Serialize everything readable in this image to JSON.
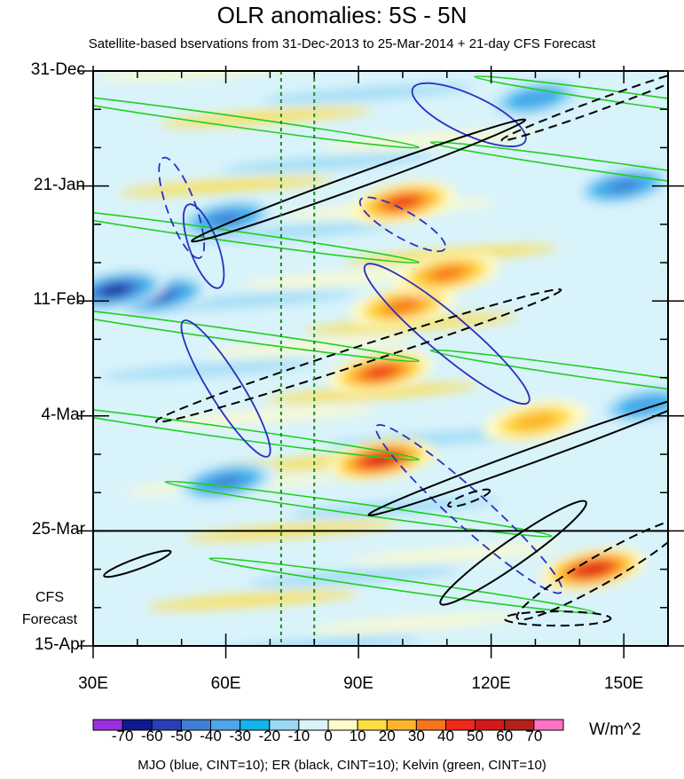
{
  "title": "OLR anomalies: 5S - 5N",
  "subtitle": "Satellite-based bservations from 31-Dec-2013 to 25-Mar-2014 + 21-day CFS Forecast",
  "cfs_label_line1": "CFS",
  "cfs_label_line2": "Forecast",
  "units": "W/m^2",
  "footer": "MJO (blue, CINT=10); ER (black, CINT=10); Kelvin (green, CINT=10)",
  "chart_data": {
    "type": "heatmap",
    "title": "OLR anomalies: 5S - 5N",
    "subtitle": "Satellite-based bservations from 31-Dec-2013 to 25-Mar-2014 + 21-day CFS Forecast",
    "x_axis": {
      "label": "",
      "unit": "longitude (degrees E)",
      "range": [
        30,
        160
      ],
      "ticks": [
        30,
        60,
        90,
        120,
        150
      ],
      "tick_labels": [
        "30E",
        "60E",
        "90E",
        "120E",
        "150E"
      ]
    },
    "y_axis": {
      "label": "",
      "direction": "time increases downward",
      "ticks": [
        "31-Dec",
        "21-Jan",
        "11-Feb",
        "4-Mar",
        "25-Mar",
        "15-Apr"
      ],
      "tick_days": [
        0,
        21,
        42,
        63,
        84,
        105
      ],
      "range_days": [
        0,
        105
      ]
    },
    "observation_end": "25-Mar",
    "forecast_label": "CFS Forecast",
    "reference_lines_lon": [
      72.5,
      80
    ],
    "colorbar": {
      "unit": "W/m^2",
      "labels": [
        "-70",
        "-60",
        "-50",
        "-40",
        "-30",
        "-20",
        "-10",
        "0",
        "10",
        "20",
        "30",
        "40",
        "50",
        "60",
        "70"
      ],
      "levels": [
        -70,
        -60,
        -50,
        -40,
        -30,
        -20,
        -10,
        0,
        10,
        20,
        30,
        40,
        50,
        60,
        70
      ],
      "colors": [
        "#9a2fe0",
        "#0f1a8f",
        "#2a3fb6",
        "#3f7fd4",
        "#4ea6e8",
        "#15b2eb",
        "#9ad8f5",
        "#d9f3fb",
        "#fffbc9",
        "#ffdd45",
        "#fcb52a",
        "#f7741e",
        "#ee2a1c",
        "#d41a18",
        "#b4201c",
        "#ff74c4"
      ]
    },
    "anomaly_features": [
      {
        "lon": 100,
        "day": 24,
        "value": 50
      },
      {
        "lon": 100,
        "day": 43,
        "value": 40
      },
      {
        "lon": 95,
        "day": 55,
        "value": 50
      },
      {
        "lon": 95,
        "day": 71,
        "value": 60
      },
      {
        "lon": 110,
        "day": 37,
        "value": 40
      },
      {
        "lon": 143,
        "day": 91,
        "value": 60
      },
      {
        "lon": 130,
        "day": 64,
        "value": 30
      },
      {
        "lon": 45,
        "day": 41,
        "value": -60
      },
      {
        "lon": 35,
        "day": 40,
        "value": -70
      },
      {
        "lon": 60,
        "day": 27,
        "value": -50
      },
      {
        "lon": 150,
        "day": 21,
        "value": -50
      },
      {
        "lon": 60,
        "day": 75,
        "value": -50
      },
      {
        "lon": 155,
        "day": 61,
        "value": -40
      },
      {
        "lon": 130,
        "day": 5,
        "value": -40
      }
    ],
    "contour_groups": [
      {
        "name": "MJO",
        "color": "blue",
        "cint": 10
      },
      {
        "name": "ER",
        "color": "black",
        "cint": 10
      },
      {
        "name": "Kelvin",
        "color": "green",
        "cint": 10
      }
    ]
  }
}
